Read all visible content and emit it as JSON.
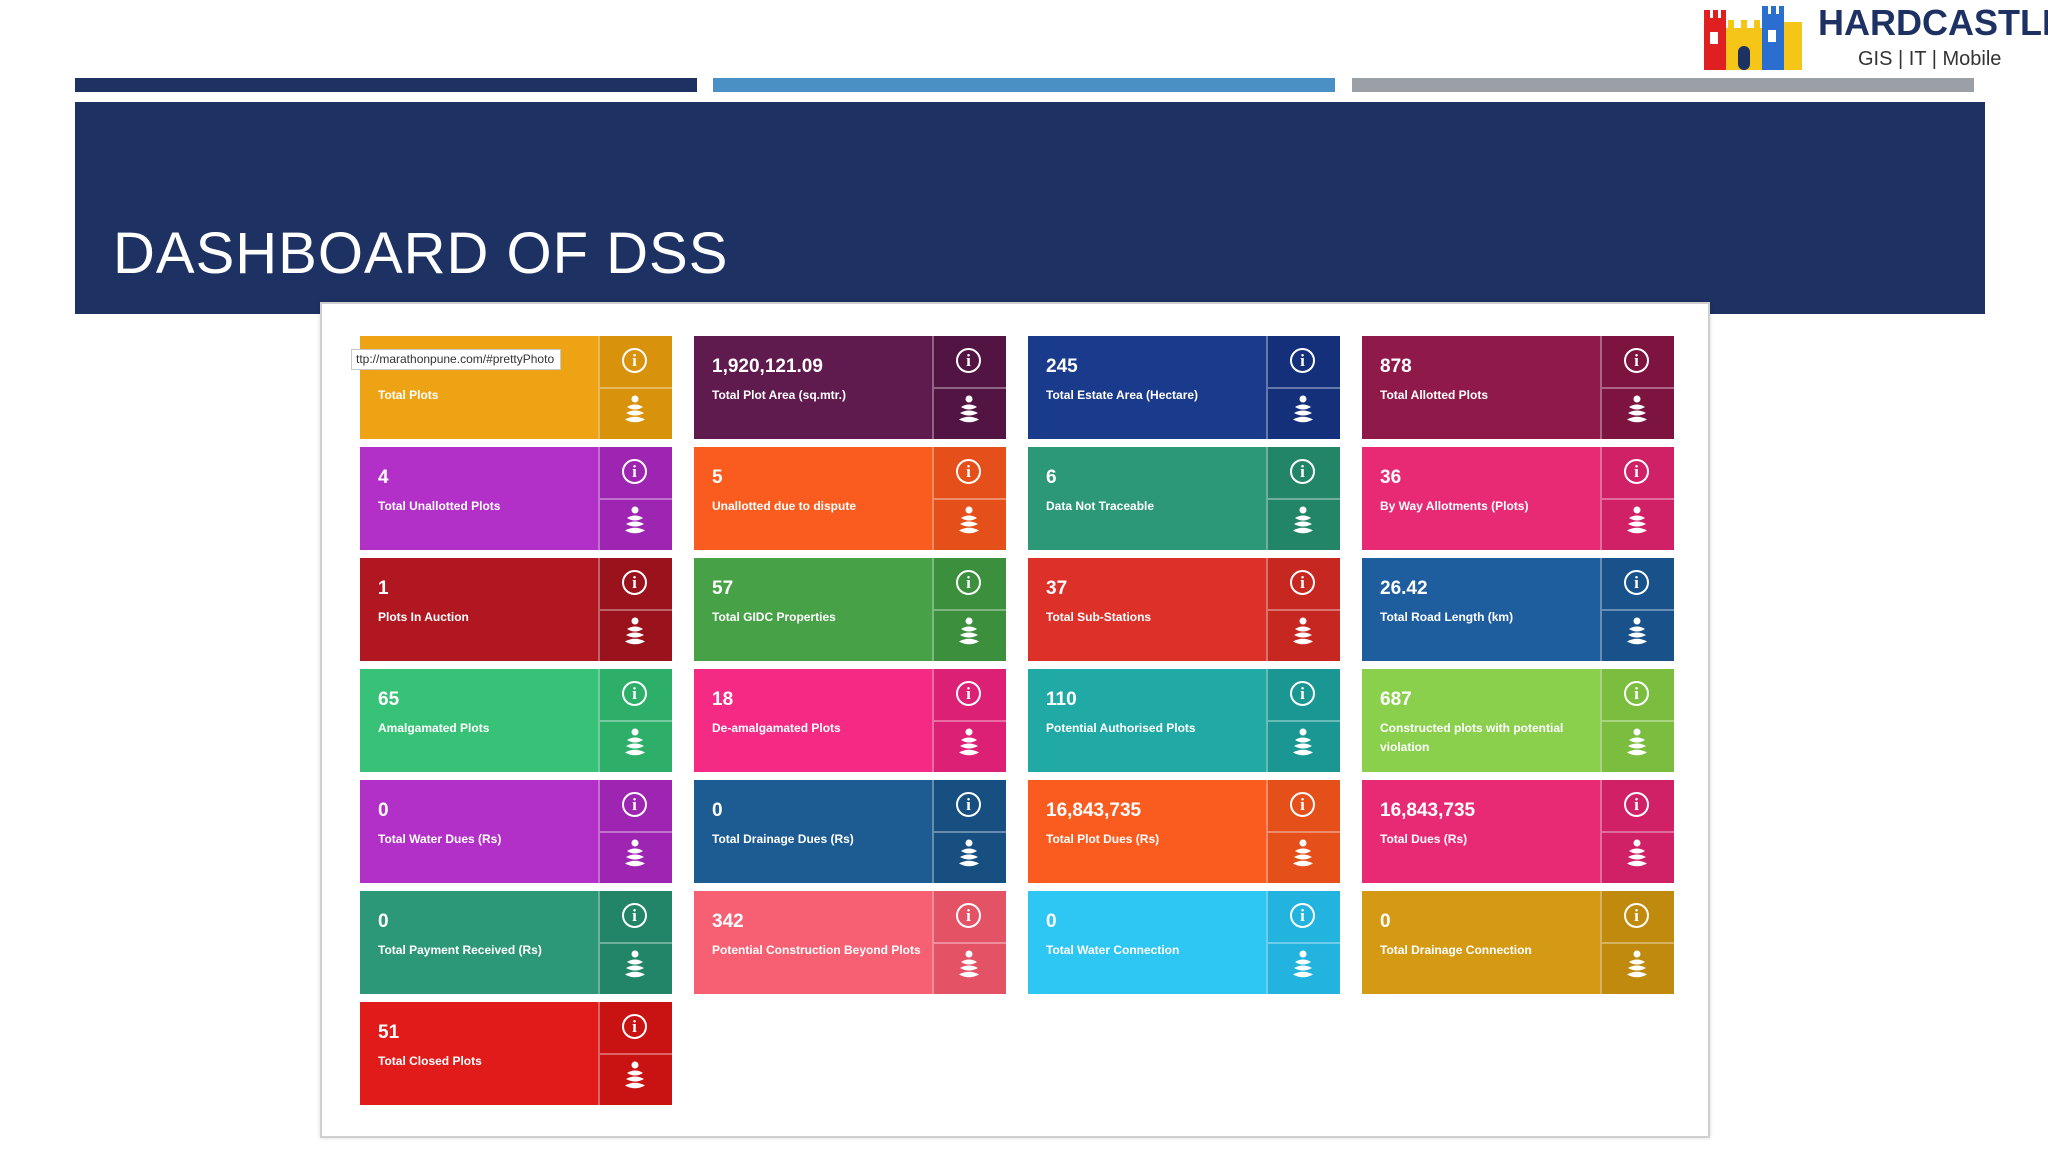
{
  "slide": {
    "title": "DASHBOARD OF DSS",
    "stripe_colors": [
      "#1e3163",
      "#4a90c4",
      "#9aa0a6"
    ],
    "header_color": "#1e3163"
  },
  "logo": {
    "name": "HARDCASTLE",
    "tagline": "GIS | IT | Mobile"
  },
  "tooltip": {
    "text": "ttp://marathonpune.com/#prettyPhoto"
  },
  "icons": {
    "info": "info-icon",
    "stack": "stack-layers-icon",
    "info_glyph": "i"
  },
  "tiles": [
    {
      "value": "",
      "label": "Total Plots",
      "color": "#eea314",
      "side_color": "#d9920c"
    },
    {
      "value": "1,920,121.09",
      "label": "Total Plot Area (sq.mtr.)",
      "color": "#5f1a4e",
      "side_color": "#521442"
    },
    {
      "value": "245",
      "label": "Total Estate Area (Hectare)",
      "color": "#1a3a8c",
      "side_color": "#15307a"
    },
    {
      "value": "878",
      "label": "Total Allotted Plots",
      "color": "#8f1a4a",
      "side_color": "#7d133f"
    },
    {
      "value": "4",
      "label": "Total Unallotted Plots",
      "color": "#b22fc8",
      "side_color": "#9d25b2"
    },
    {
      "value": "5",
      "label": "Unallotted due to dispute",
      "color": "#fa5c20",
      "side_color": "#e5501a"
    },
    {
      "value": "6",
      "label": "Data Not Traceable",
      "color": "#2d9878",
      "side_color": "#238568"
    },
    {
      "value": "36",
      "label": "By Way Allotments (Plots)",
      "color": "#e82a74",
      "side_color": "#d02066"
    },
    {
      "value": "1",
      "label": "Plots In Auction",
      "color": "#b01720",
      "side_color": "#9a121b"
    },
    {
      "value": "57",
      "label": "Total GIDC Properties",
      "color": "#47a247",
      "side_color": "#3c8f3c"
    },
    {
      "value": "37",
      "label": "Total Sub-Stations",
      "color": "#dd3029",
      "side_color": "#c72721"
    },
    {
      "value": "26.42",
      "label": "Total Road Length (km)",
      "color": "#1f5e9e",
      "side_color": "#19528b"
    },
    {
      "value": "65",
      "label": "Amalgamated Plots",
      "color": "#37c278",
      "side_color": "#2dae69"
    },
    {
      "value": "18",
      "label": "De-amalgamated Plots",
      "color": "#f42a85",
      "side_color": "#dc2076"
    },
    {
      "value": "110",
      "label": "Potential Authorised Plots",
      "color": "#21aaa5",
      "side_color": "#1a9792"
    },
    {
      "value": "687",
      "label": "Constructed plots with potential violation",
      "color": "#8ad04c",
      "side_color": "#7abd3f"
    },
    {
      "value": "0",
      "label": "Total Water Dues (Rs)",
      "color": "#b22fc8",
      "side_color": "#9d25b2"
    },
    {
      "value": "0",
      "label": "Total Drainage Dues (Rs)",
      "color": "#1d5c92",
      "side_color": "#175080"
    },
    {
      "value": "16,843,735",
      "label": "Total Plot Dues (Rs)",
      "color": "#fa5c20",
      "side_color": "#e5501a"
    },
    {
      "value": "16,843,735",
      "label": "Total Dues (Rs)",
      "color": "#e82a74",
      "side_color": "#d02066"
    },
    {
      "value": "0",
      "label": "Total Payment Received (Rs)",
      "color": "#2d9878",
      "side_color": "#238568"
    },
    {
      "value": "342",
      "label": "Potential Construction Beyond Plots",
      "color": "#f76073",
      "side_color": "#e35265"
    },
    {
      "value": "0",
      "label": "Total Water Connection",
      "color": "#2ec6f2",
      "side_color": "#22b3de"
    },
    {
      "value": "0",
      "label": "Total Drainage Connection",
      "color": "#d49a14",
      "side_color": "#c08a0e"
    },
    {
      "value": "51",
      "label": "Total Closed Plots",
      "color": "#e11a1a",
      "side_color": "#c91313"
    }
  ]
}
